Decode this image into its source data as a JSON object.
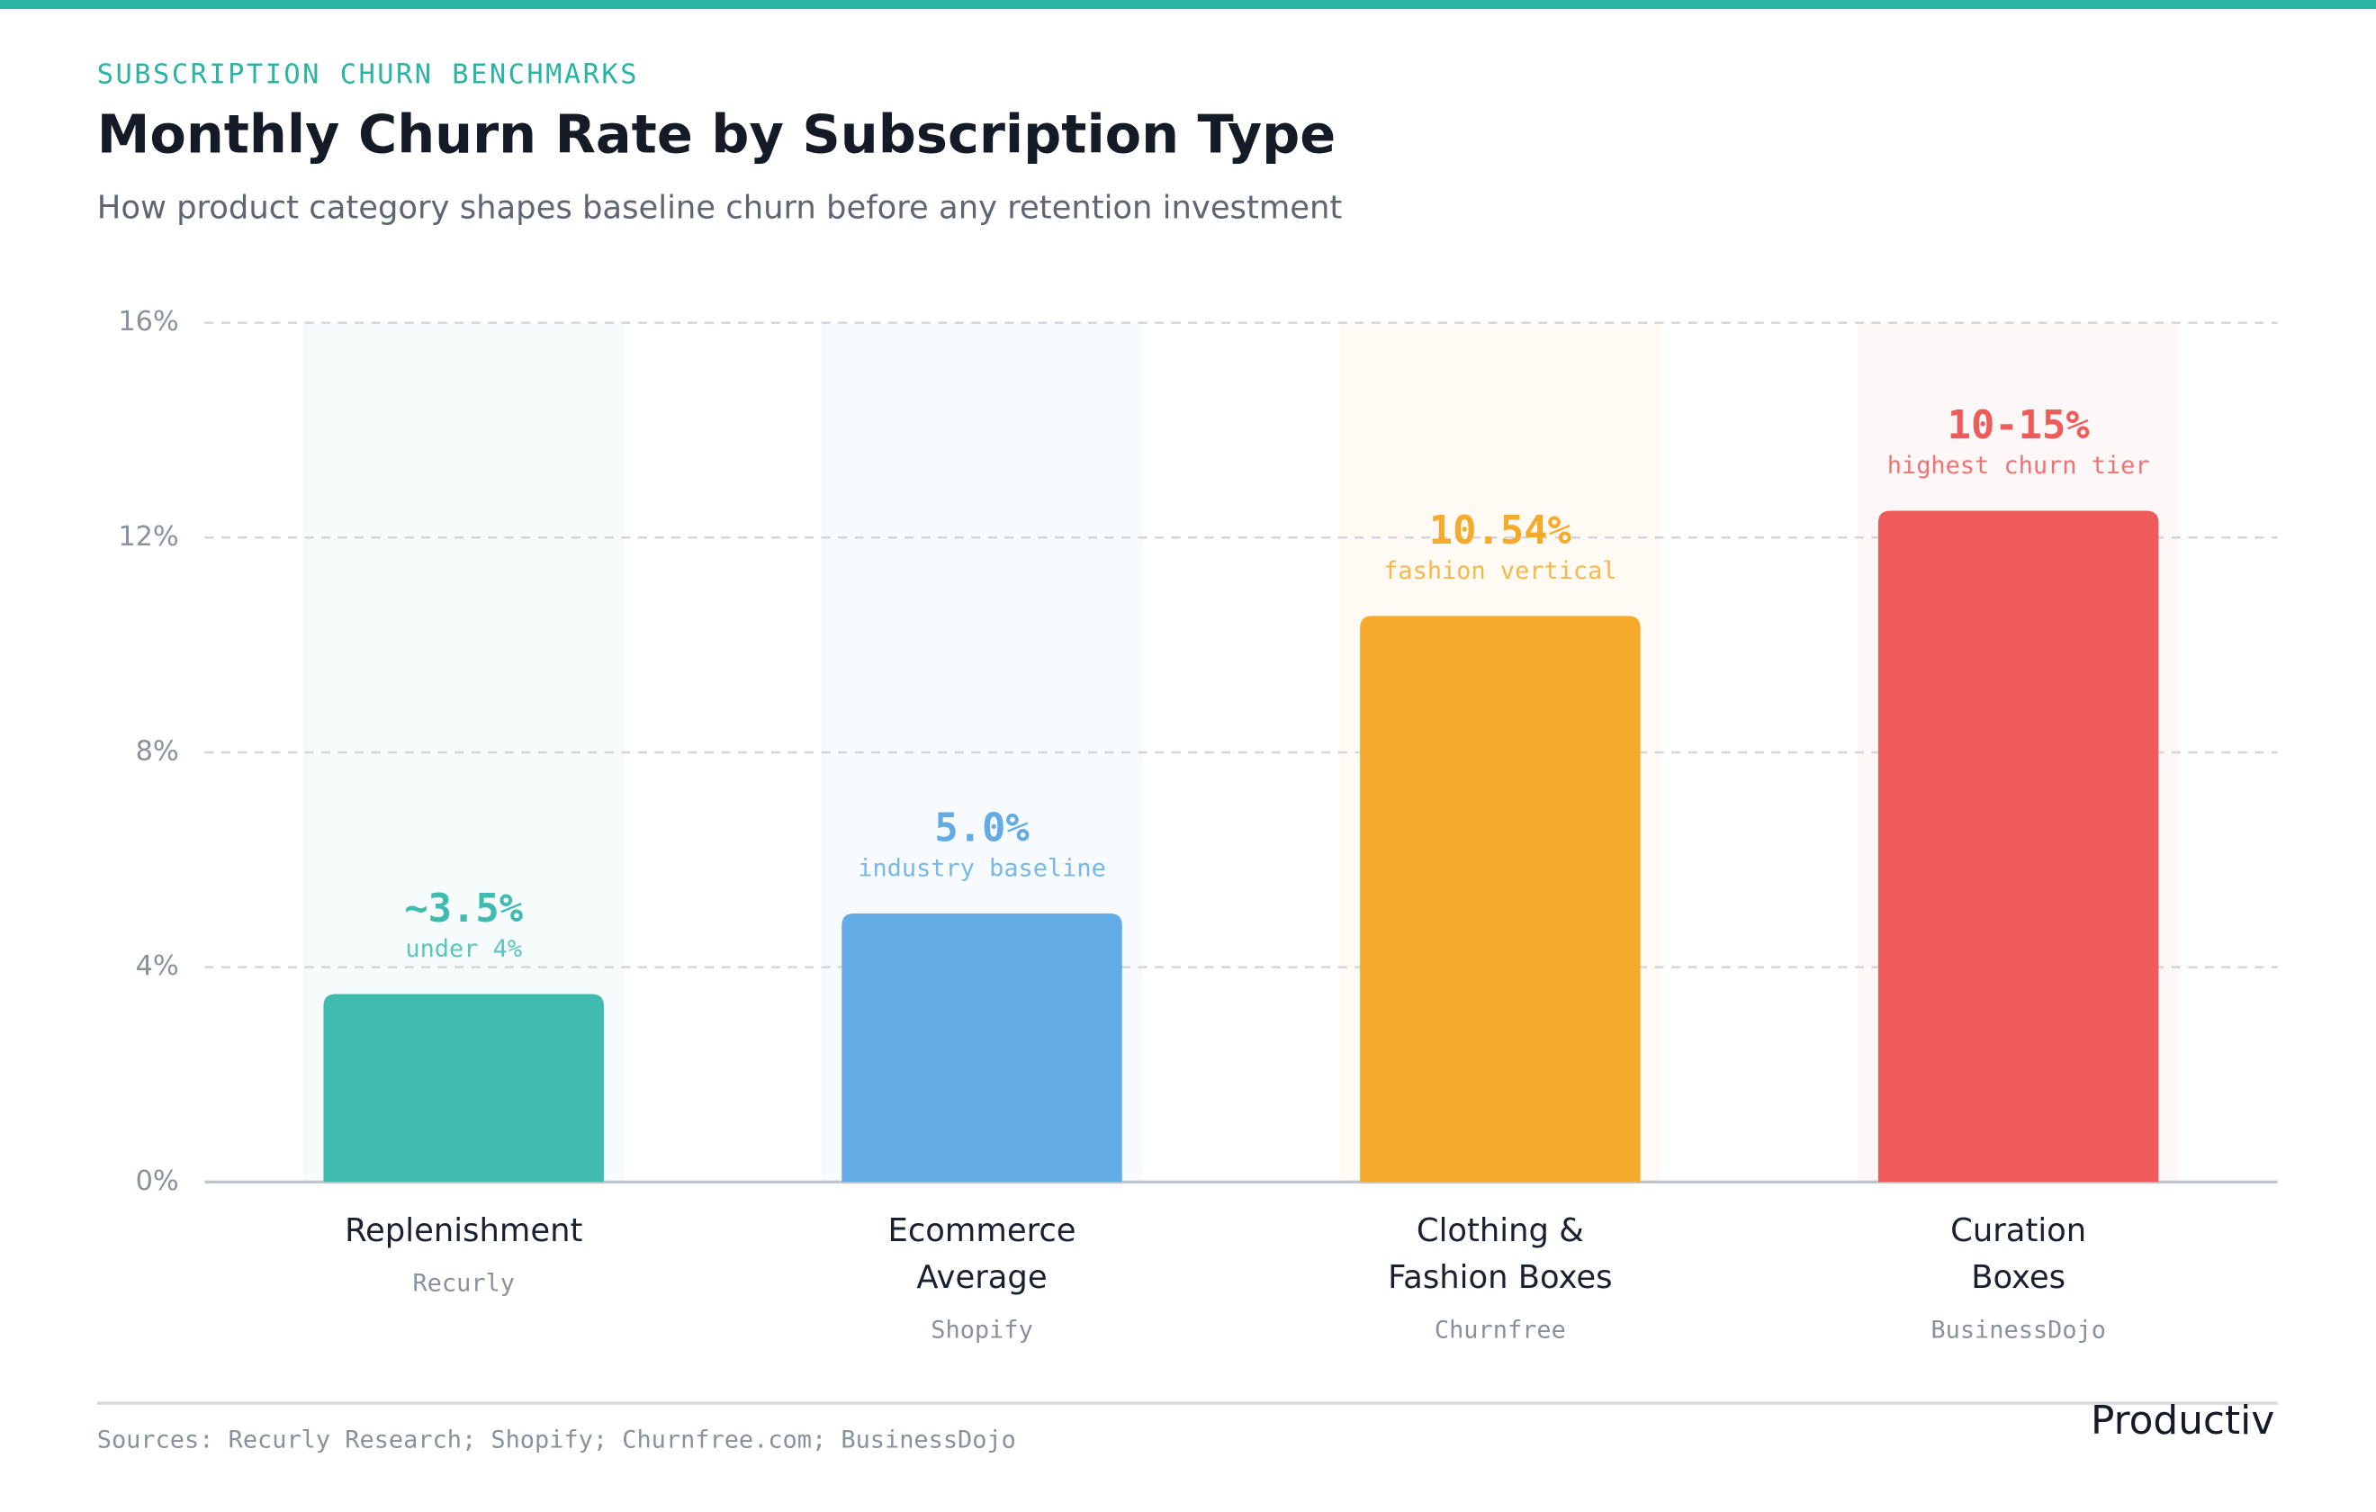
{
  "header": {
    "eyebrow": "SUBSCRIPTION CHURN BENCHMARKS"
  },
  "chart_data": {
    "type": "bar",
    "title": "Monthly Churn Rate by Subscription Type",
    "subtitle": "How product category shapes baseline churn before any retention investment",
    "categories": [
      "Replenishment",
      "Ecommerce\nAverage",
      "Clothing &\nFashion Boxes",
      "Curation\nBoxes"
    ],
    "sources": [
      "Recurly",
      "Shopify",
      "Churnfree",
      "BusinessDojo"
    ],
    "values": [
      3.5,
      5.0,
      10.54,
      12.5
    ],
    "value_labels": [
      "~3.5%",
      "5.0%",
      "10.54%",
      "10-15%"
    ],
    "notes": [
      "under 4%",
      "industry baseline",
      "fashion vertical",
      "highest churn tier"
    ],
    "colors": [
      "#3fbbb0",
      "#62abe4",
      "#f6aa2b",
      "#ef5b5b"
    ],
    "ylim": [
      0,
      16
    ],
    "yticks": [
      {
        "value": 0,
        "label": "0%"
      },
      {
        "value": 4,
        "label": "4%"
      },
      {
        "value": 8,
        "label": "8%"
      },
      {
        "value": 12,
        "label": "12%"
      },
      {
        "value": 16,
        "label": "16%"
      }
    ],
    "grid": true
  },
  "footer": {
    "sources": "Sources: Recurly Research; Shopify; Churnfree.com; BusinessDojo",
    "logo": "Productiv"
  }
}
